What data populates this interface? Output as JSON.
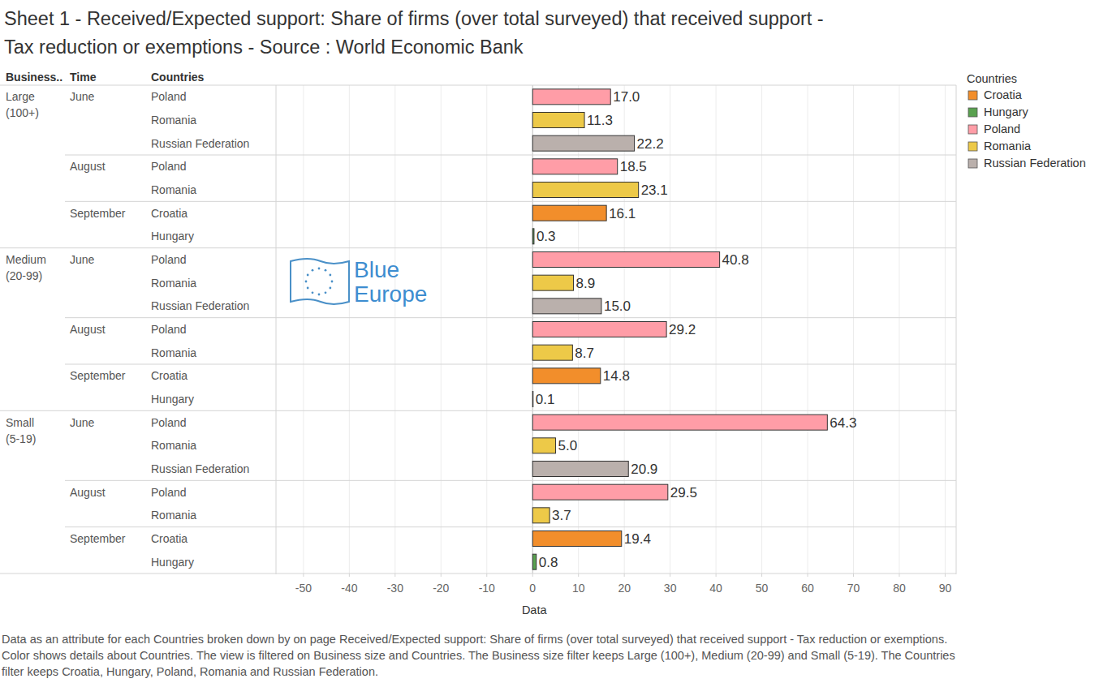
{
  "chart_data": {
    "type": "bar",
    "orientation": "horizontal",
    "title": "Sheet 1 - Received/Expected support:  Share of firms (over total surveyed) that received support -\nTax reduction or exemptions - Source : World Economic Bank",
    "header_labels": [
      "Business..",
      "Time",
      "Countries"
    ],
    "x_label": "Data",
    "legend_title": "Countries",
    "legend": "top-right",
    "watermark": [
      "Blue",
      "Europe"
    ],
    "caption": "Data as an attribute for each Countries broken down by  on page Received/Expected support:  Share of firms (over total surveyed) that received support - Tax reduction or exemptions.  Color shows details about Countries. The view is filtered on Business size and Countries. The Business size filter keeps Large (100+), Medium (20-99) and Small (5-19). The Countries filter keeps Croatia, Hungary, Poland, Romania and Russian Federation.",
    "grid": true,
    "data_labels": true,
    "xlim": [
      -56,
      92.4
    ],
    "xticks": [
      -50,
      -40,
      -30,
      -20,
      -10,
      0,
      10,
      20,
      30,
      40,
      50,
      60,
      70,
      80,
      90
    ],
    "series": [
      {
        "name": "Croatia",
        "color": "#f28e2b"
      },
      {
        "name": "Hungary",
        "color": "#59a14f"
      },
      {
        "name": "Poland",
        "color": "#ff9da7"
      },
      {
        "name": "Romania",
        "color": "#edc948"
      },
      {
        "name": "Russian Federation",
        "color": "#bab0ac"
      }
    ],
    "groups": [
      {
        "label": "Large (100+)",
        "subgroups": [
          {
            "label": "June",
            "categories": [
              "Poland",
              "Romania",
              "Russian Federation"
            ],
            "values": [
              17.0,
              11.3,
              22.2
            ],
            "value_labels": [
              "17.0",
              "11.3",
              "22.2"
            ]
          },
          {
            "label": "August",
            "categories": [
              "Poland",
              "Romania"
            ],
            "values": [
              18.5,
              23.1
            ],
            "value_labels": [
              "18.5",
              "23.1"
            ]
          },
          {
            "label": "September",
            "categories": [
              "Croatia",
              "Hungary"
            ],
            "values": [
              16.1,
              0.3
            ],
            "value_labels": [
              "16.1",
              "0.3"
            ]
          }
        ]
      },
      {
        "label": "Medium (20-99)",
        "subgroups": [
          {
            "label": "June",
            "categories": [
              "Poland",
              "Romania",
              "Russian Federation"
            ],
            "values": [
              40.8,
              8.9,
              15.0
            ],
            "value_labels": [
              "40.8",
              "8.9",
              "15.0"
            ]
          },
          {
            "label": "August",
            "categories": [
              "Poland",
              "Romania"
            ],
            "values": [
              29.2,
              8.7
            ],
            "value_labels": [
              "29.2",
              "8.7"
            ]
          },
          {
            "label": "September",
            "categories": [
              "Croatia",
              "Hungary"
            ],
            "values": [
              14.8,
              0.1
            ],
            "value_labels": [
              "14.8",
              "0.1"
            ]
          }
        ]
      },
      {
        "label": "Small (5-19)",
        "subgroups": [
          {
            "label": "June",
            "categories": [
              "Poland",
              "Romania",
              "Russian Federation"
            ],
            "values": [
              64.3,
              5.0,
              20.9
            ],
            "value_labels": [
              "64.3",
              "5.0",
              "20.9"
            ]
          },
          {
            "label": "August",
            "categories": [
              "Poland",
              "Romania"
            ],
            "values": [
              29.5,
              3.7
            ],
            "value_labels": [
              "29.5",
              "3.7"
            ]
          },
          {
            "label": "September",
            "categories": [
              "Croatia",
              "Hungary"
            ],
            "values": [
              19.4,
              0.8
            ],
            "value_labels": [
              "19.4",
              "0.8"
            ]
          }
        ]
      }
    ]
  }
}
